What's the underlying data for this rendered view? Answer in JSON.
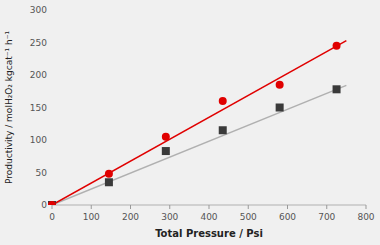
{
  "chart_data": {
    "type": "scatter",
    "xlabel": "Total Pressure / Psi",
    "ylabel": "Productivity / molH₂O₂ kgcat⁻¹ h⁻¹",
    "xlim": [
      0,
      800
    ],
    "ylim": [
      0,
      300
    ],
    "xticks": [
      0,
      100,
      200,
      300,
      400,
      500,
      600,
      700,
      800
    ],
    "yticks": [
      0,
      50,
      100,
      150,
      200,
      250,
      300
    ],
    "grid": false,
    "series": [
      {
        "type": "line",
        "color": "#b0b0b0",
        "x": [
          0,
          750
        ],
        "values": [
          0,
          184
        ]
      },
      {
        "type": "line",
        "color": "#e00000",
        "x": [
          0,
          750
        ],
        "values": [
          0,
          253
        ]
      },
      {
        "type": "scatter",
        "marker": "square",
        "color": "#3a3a3a",
        "x": [
          0,
          145,
          290,
          435,
          580,
          725
        ],
        "values": [
          0,
          35,
          83,
          115,
          150,
          178
        ]
      },
      {
        "type": "scatter",
        "marker": "circle",
        "color": "#e00000",
        "x": [
          0,
          145,
          290,
          435,
          580,
          725
        ],
        "values": [
          0,
          48,
          105,
          160,
          185,
          245
        ]
      }
    ]
  }
}
